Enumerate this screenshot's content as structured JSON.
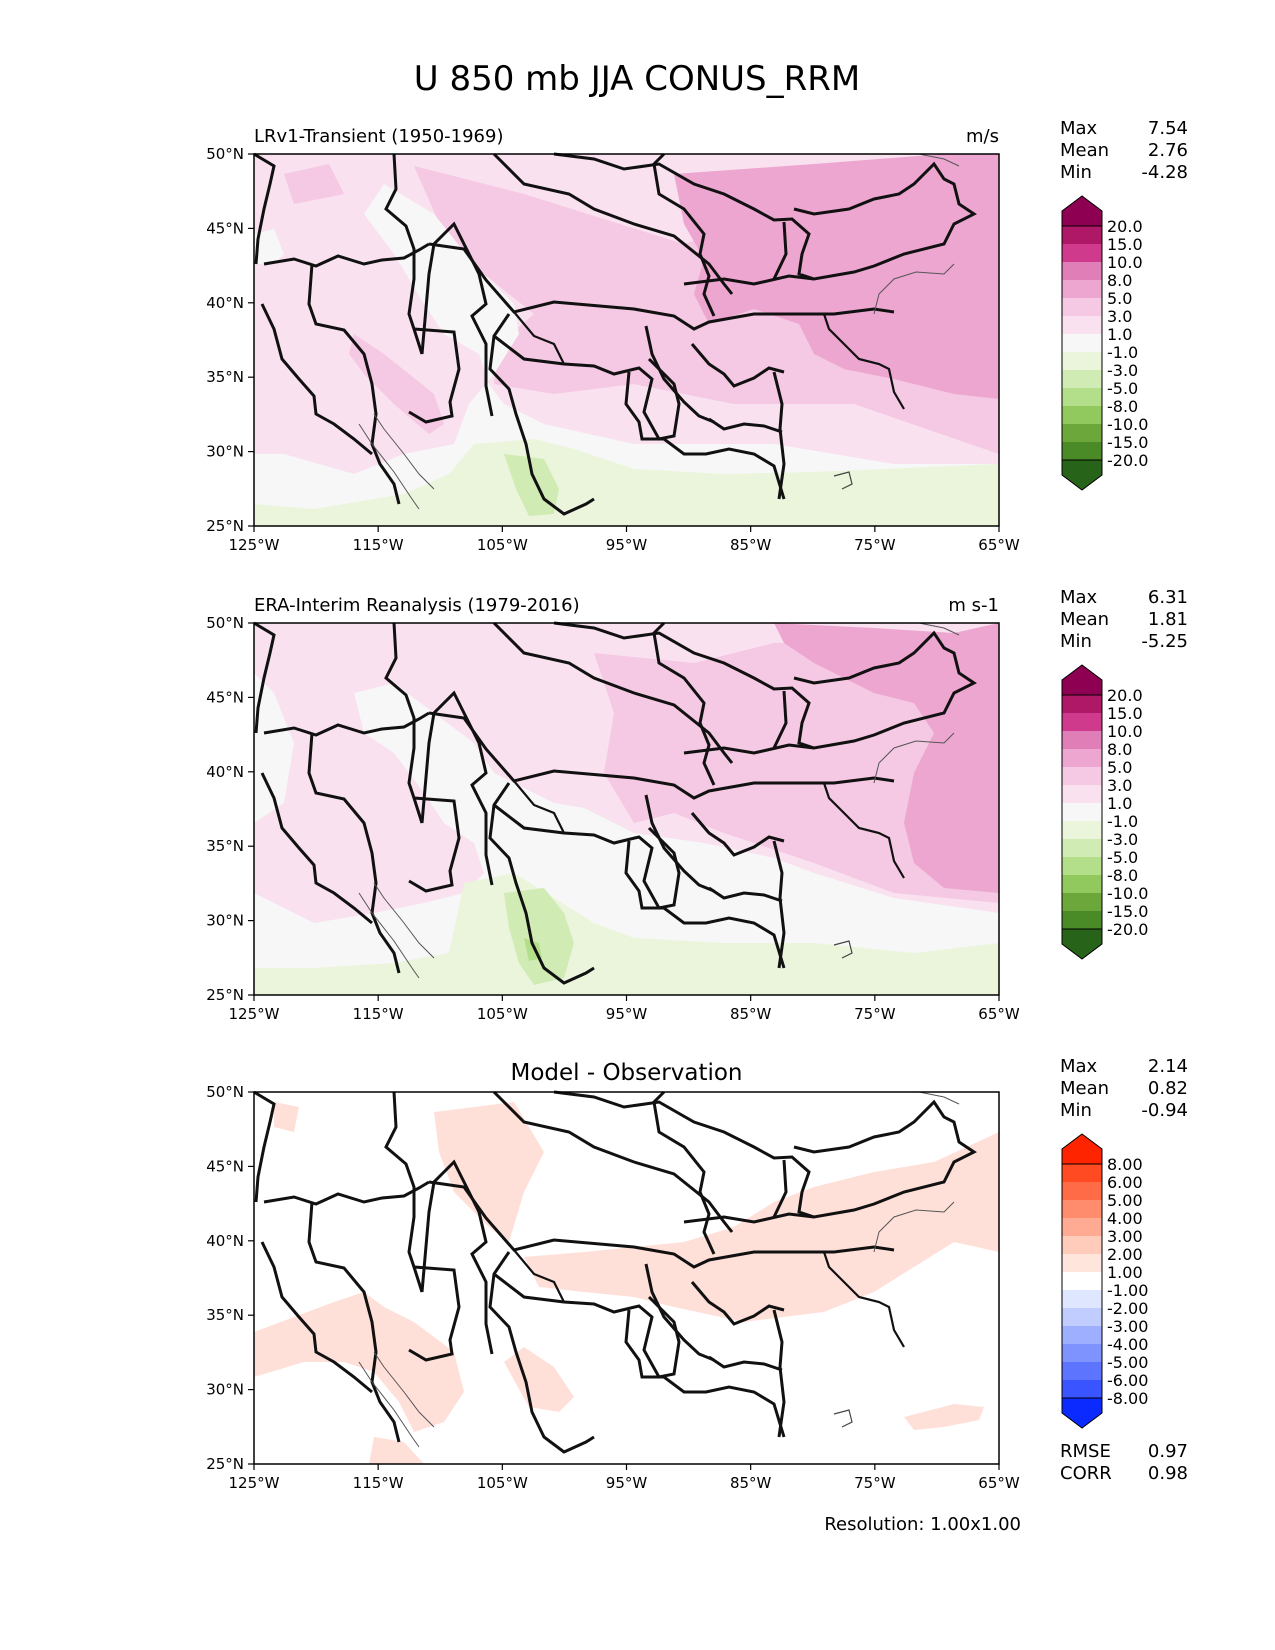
{
  "title": "U 850 mb JJA CONUS_RRM",
  "lon_ticks": [
    "125°W",
    "115°W",
    "105°W",
    "95°W",
    "85°W",
    "75°W",
    "65°W"
  ],
  "lat_ticks": [
    "50°N",
    "45°N",
    "40°N",
    "35°N",
    "30°N",
    "25°N"
  ],
  "panels": [
    {
      "left_title": "LRv1-Transient (1950-1969)",
      "right_title": "m/s",
      "center_title": "",
      "stats": [
        {
          "label": "Max",
          "value": "7.54"
        },
        {
          "label": "Mean",
          "value": "2.76"
        },
        {
          "label": "Min",
          "value": "-4.28"
        }
      ],
      "colorbar": {
        "labels": [
          "20.0",
          "15.0",
          "10.0",
          "8.0",
          "5.0",
          "3.0",
          "1.0",
          "-1.0",
          "-3.0",
          "-5.0",
          "-8.0",
          "-10.0",
          "-15.0",
          "-20.0"
        ],
        "colors": [
          "#8e0152",
          "#af1767",
          "#cf3a8c",
          "#e07fb7",
          "#eda6d0",
          "#f5c8e3",
          "#f9e1ef",
          "#f7f7f7",
          "#eaf5dc",
          "#d1ebb4",
          "#b3de8a",
          "#91c95f",
          "#6ba73a",
          "#4a8a27",
          "#276419"
        ]
      }
    },
    {
      "left_title": "ERA-Interim Reanalysis (1979-2016)",
      "right_title": "m s-1",
      "center_title": "",
      "stats": [
        {
          "label": "Max",
          "value": "6.31"
        },
        {
          "label": "Mean",
          "value": "1.81"
        },
        {
          "label": "Min",
          "value": "-5.25"
        }
      ],
      "colorbar": {
        "labels": [
          "20.0",
          "15.0",
          "10.0",
          "8.0",
          "5.0",
          "3.0",
          "1.0",
          "-1.0",
          "-3.0",
          "-5.0",
          "-8.0",
          "-10.0",
          "-15.0",
          "-20.0"
        ],
        "colors": [
          "#8e0152",
          "#af1767",
          "#cf3a8c",
          "#e07fb7",
          "#eda6d0",
          "#f5c8e3",
          "#f9e1ef",
          "#f7f7f7",
          "#eaf5dc",
          "#d1ebb4",
          "#b3de8a",
          "#91c95f",
          "#6ba73a",
          "#4a8a27",
          "#276419"
        ]
      }
    },
    {
      "left_title": "",
      "right_title": "",
      "center_title": "Model - Observation",
      "stats": [
        {
          "label": "Max",
          "value": "2.14"
        },
        {
          "label": "Mean",
          "value": "0.82"
        },
        {
          "label": "Min",
          "value": "-0.94"
        }
      ],
      "extra_stats": [
        {
          "label": "RMSE",
          "value": "0.97"
        },
        {
          "label": "CORR",
          "value": "0.98"
        }
      ],
      "colorbar": {
        "labels": [
          "8.00",
          "6.00",
          "5.00",
          "4.00",
          "3.00",
          "2.00",
          "1.00",
          "-1.00",
          "-2.00",
          "-3.00",
          "-4.00",
          "-5.00",
          "-6.00",
          "-8.00"
        ],
        "colors": [
          "#ff2400",
          "#ff4a22",
          "#ff6b47",
          "#ff8c6c",
          "#ffab93",
          "#ffcbbb",
          "#ffe5dc",
          "#ffffff",
          "#dfe6ff",
          "#c2cdff",
          "#9eafff",
          "#7f93ff",
          "#5d74ff",
          "#3a55ff",
          "#0a2aff"
        ]
      }
    }
  ],
  "footer": "Resolution: 1.00x1.00"
}
